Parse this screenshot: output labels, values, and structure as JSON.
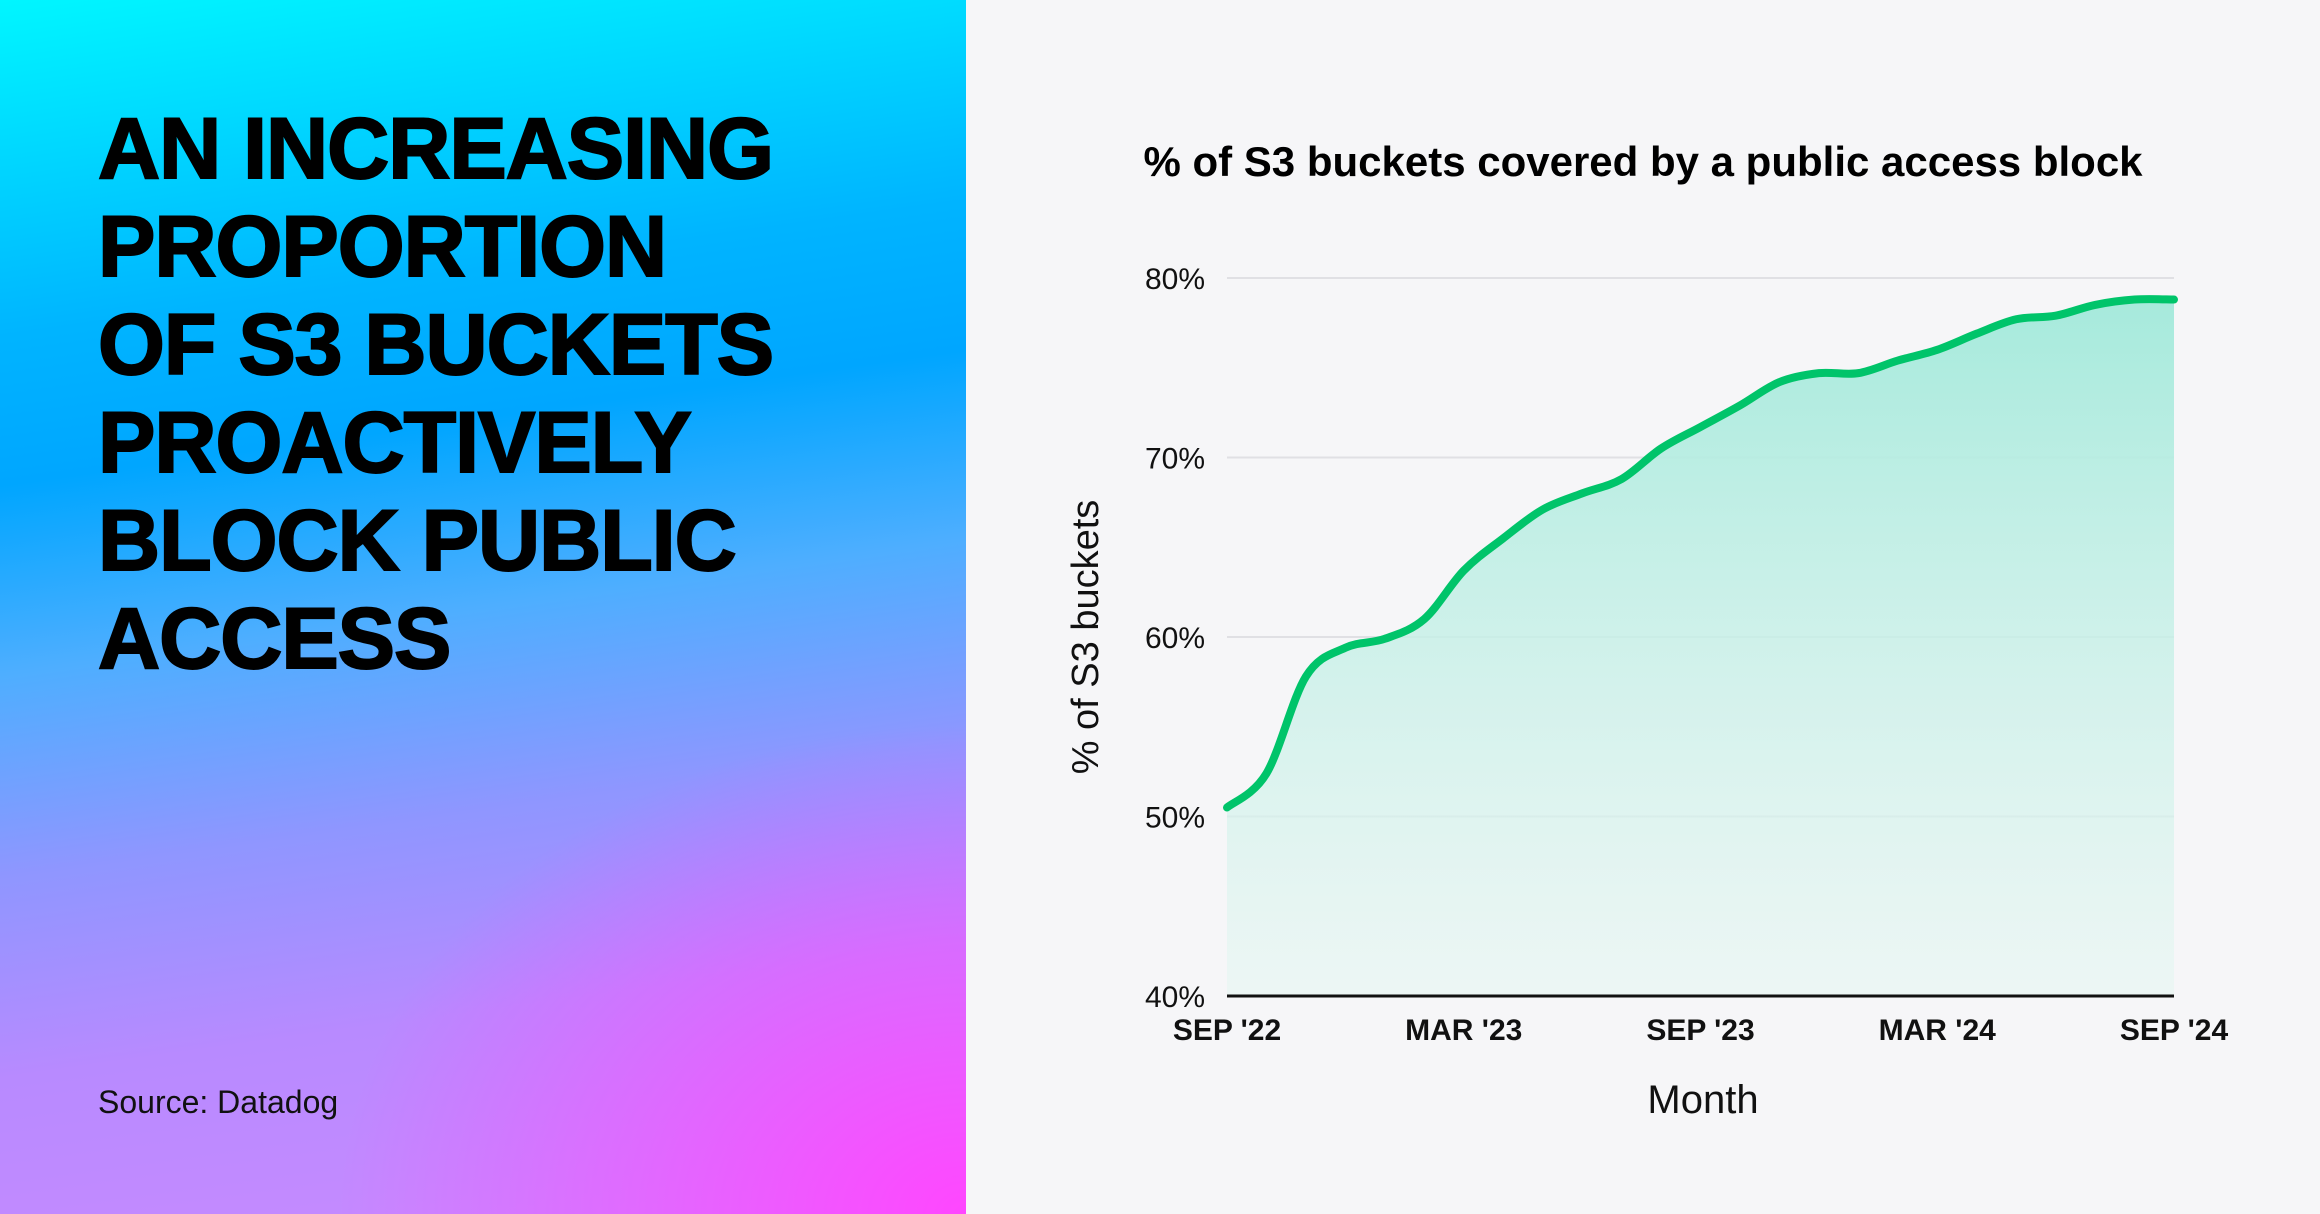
{
  "headline": [
    "AN INCREASING",
    "PROPORTION",
    "OF S3 BUCKETS",
    "PROACTIVELY",
    "BLOCK PUBLIC",
    "ACCESS"
  ],
  "source": "Source: Datadog",
  "colors": {
    "line": "#00c46a",
    "fill": "#a6eadc",
    "axis": "#111111",
    "grid": "#e0e0e4"
  },
  "chart_data": {
    "type": "area",
    "title": "% of S3 buckets covered by a public access block",
    "xlabel": "Month",
    "ylabel": "% of S3 buckets",
    "ylim": [
      40,
      80
    ],
    "yticks": [
      "40%",
      "50%",
      "60%",
      "70%",
      "80%"
    ],
    "ytick_values": [
      40,
      50,
      60,
      70,
      80
    ],
    "xticks": [
      "SEP '22",
      "MAR '23",
      "SEP '23",
      "MAR '24",
      "SEP '24"
    ],
    "xtick_months": [
      0,
      6,
      12,
      18,
      24
    ],
    "grid": true,
    "x": [
      "Sep 2022",
      "Oct 2022",
      "Nov 2022",
      "Dec 2022",
      "Jan 2023",
      "Feb 2023",
      "Mar 2023",
      "Apr 2023",
      "May 2023",
      "Jun 2023",
      "Jul 2023",
      "Aug 2023",
      "Sep 2023",
      "Oct 2023",
      "Nov 2023",
      "Dec 2023",
      "Jan 2024",
      "Feb 2024",
      "Mar 2024",
      "Apr 2024",
      "May 2024",
      "Jun 2024",
      "Jul 2024",
      "Aug 2024",
      "Sep 2024"
    ],
    "values": [
      50.5,
      52.4,
      57.8,
      59.4,
      59.9,
      61.0,
      63.7,
      65.5,
      67.1,
      68.0,
      68.8,
      70.5,
      71.7,
      72.9,
      74.2,
      74.7,
      74.7,
      75.4,
      76.0,
      76.9,
      77.7,
      77.9,
      78.5,
      78.8,
      78.8
    ]
  }
}
